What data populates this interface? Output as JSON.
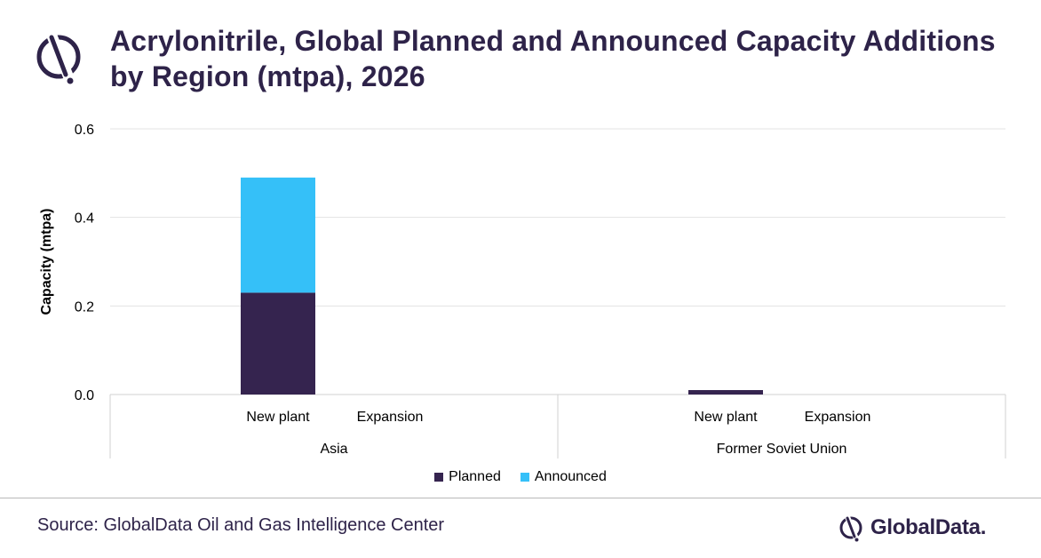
{
  "title": "Acrylonitrile, Global Planned and Announced Capacity Additions by Region (mtpa), 2026",
  "source": "Source: GlobalData Oil and Gas Intelligence Center",
  "brand": "GlobalData.",
  "colors": {
    "planned": "#35244f",
    "announced": "#35c0f8",
    "title": "#2e2349"
  },
  "legend": [
    {
      "name": "Planned",
      "color": "#35244f"
    },
    {
      "name": "Announced",
      "color": "#35c0f8"
    }
  ],
  "chart_data": {
    "type": "bar",
    "stacked": true,
    "ylabel": "Capacity (mtpa)",
    "ylim": [
      0,
      0.6
    ],
    "yticks": [
      "0.0",
      "0.2",
      "0.4",
      "0.6"
    ],
    "groups": [
      "Asia",
      "Former Soviet Union"
    ],
    "categories": [
      "New plant",
      "Expansion",
      "New plant",
      "Expansion"
    ],
    "series": [
      {
        "name": "Planned",
        "values": [
          0.23,
          0,
          0.01,
          0
        ]
      },
      {
        "name": "Announced",
        "values": [
          0.26,
          0,
          0,
          0
        ]
      }
    ],
    "grid": true,
    "legend_position": "bottom"
  }
}
